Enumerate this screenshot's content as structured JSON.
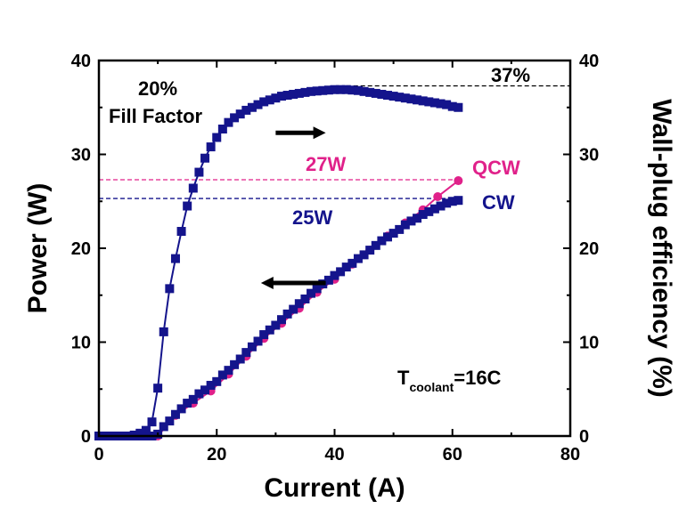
{
  "chart_data": {
    "type": "line",
    "xlabel": "Current (A)",
    "ylabel": "Power (W)",
    "y2label": "Wall-plug efficiency (%)",
    "xlim": [
      0,
      80
    ],
    "ylim": [
      0,
      40
    ],
    "y2lim": [
      0,
      40
    ],
    "xticks": [
      0,
      20,
      40,
      60,
      80
    ],
    "yticks": [
      0,
      10,
      20,
      30,
      40
    ],
    "y2ticks": [
      0,
      10,
      20,
      30,
      40
    ],
    "grid": false,
    "colors": {
      "cw": "#14148c",
      "qcw": "#e0218a",
      "ref": "#000000"
    },
    "series": [
      {
        "name": "CW",
        "axis": "left",
        "marker": "square",
        "color": "#14148c",
        "x": [
          0,
          1,
          2,
          3,
          4,
          5,
          6,
          7,
          8,
          9,
          10,
          11,
          12,
          13,
          14,
          15,
          16,
          17,
          18,
          19,
          20,
          21,
          22,
          23,
          24,
          25,
          26,
          27,
          28,
          29,
          30,
          31,
          32,
          33,
          34,
          35,
          36,
          37,
          38,
          39,
          40,
          41,
          42,
          43,
          44,
          45,
          46,
          47,
          48,
          49,
          50,
          51,
          52,
          53,
          54,
          55,
          56,
          57,
          58,
          59,
          60,
          61
        ],
        "y": [
          0,
          0,
          0,
          0,
          0,
          0,
          0,
          0,
          0,
          0,
          0.2,
          1.0,
          1.6,
          2.3,
          2.9,
          3.5,
          3.9,
          4.5,
          4.9,
          5.4,
          5.8,
          6.5,
          7.0,
          7.6,
          8.2,
          8.9,
          9.5,
          10.1,
          10.8,
          11.3,
          11.8,
          12.4,
          13.0,
          13.5,
          14.1,
          14.6,
          15.2,
          15.7,
          16.2,
          16.6,
          17.1,
          17.5,
          18.0,
          18.4,
          18.9,
          19.3,
          19.8,
          20.3,
          20.8,
          21.2,
          21.6,
          22.0,
          22.5,
          22.9,
          23.2,
          23.6,
          23.9,
          24.2,
          24.5,
          24.8,
          25.0,
          25.1
        ]
      },
      {
        "name": "QCW",
        "axis": "left",
        "marker": "circle",
        "color": "#e0218a",
        "x": [
          1,
          5,
          10,
          13,
          16,
          19,
          22,
          25,
          28,
          31,
          34,
          37,
          40,
          43,
          46,
          49,
          52,
          55,
          57.5,
          61
        ],
        "y": [
          0,
          0,
          0,
          2.2,
          3.5,
          4.8,
          6.6,
          8.5,
          10.4,
          12.0,
          13.6,
          15.3,
          16.7,
          18.3,
          19.8,
          21.3,
          22.7,
          24.1,
          25.5,
          27.2
        ]
      },
      {
        "name": "Wall-plug efficiency",
        "axis": "right",
        "marker": "square",
        "color": "#14148c",
        "x": [
          0,
          1,
          2,
          3,
          4,
          5,
          6,
          7,
          8,
          9,
          10,
          11,
          12,
          13,
          14,
          15,
          16,
          17,
          18,
          19,
          20,
          21,
          22,
          23,
          24,
          25,
          26,
          27,
          28,
          29,
          30,
          31,
          32,
          33,
          34,
          35,
          36,
          37,
          38,
          39,
          40,
          41,
          42,
          43,
          44,
          45,
          46,
          47,
          48,
          49,
          50,
          51,
          52,
          53,
          54,
          55,
          56,
          57,
          58,
          59,
          60,
          61
        ],
        "y": [
          0,
          0,
          0,
          0,
          0,
          0,
          0.1,
          0.3,
          0.6,
          1.5,
          5.1,
          11.1,
          15.7,
          18.9,
          21.8,
          24.5,
          26.4,
          28.1,
          29.6,
          30.8,
          31.8,
          32.7,
          33.4,
          33.9,
          34.3,
          34.7,
          35.0,
          35.3,
          35.6,
          35.8,
          36.0,
          36.2,
          36.3,
          36.4,
          36.5,
          36.6,
          36.7,
          36.75,
          36.8,
          36.85,
          36.9,
          36.9,
          36.9,
          36.85,
          36.8,
          36.7,
          36.6,
          36.5,
          36.4,
          36.3,
          36.2,
          36.1,
          36.0,
          35.9,
          35.8,
          35.7,
          35.6,
          35.5,
          35.4,
          35.3,
          35.1,
          35.0
        ]
      }
    ],
    "reference_lines": [
      {
        "axis": "right",
        "value": 37.3,
        "color": "#000000",
        "x_from": 42,
        "x_to": 80
      },
      {
        "axis": "left",
        "value": 27.3,
        "color": "#e0218a",
        "x_from": 0,
        "x_to": 61
      },
      {
        "axis": "left",
        "value": 25.3,
        "color": "#14148c",
        "x_from": 0,
        "x_to": 61
      }
    ],
    "arrows": [
      {
        "direction": "right",
        "x_from": 30,
        "x_to": 38.5,
        "y": 32.3,
        "axis": "left"
      },
      {
        "direction": "left",
        "x_from": 38.5,
        "x_to": 27.5,
        "y": 16.3,
        "axis": "left"
      }
    ],
    "annotations": {
      "fill_factor_value": "20%",
      "fill_factor_label": "Fill Factor",
      "peak_efficiency": "37%",
      "qcw_power": "27W",
      "cw_power": "25W",
      "qcw_label": "QCW",
      "cw_label": "CW",
      "temperature_prefix": "T",
      "temperature_subscript": "coolant",
      "temperature_value": "=16C"
    }
  }
}
